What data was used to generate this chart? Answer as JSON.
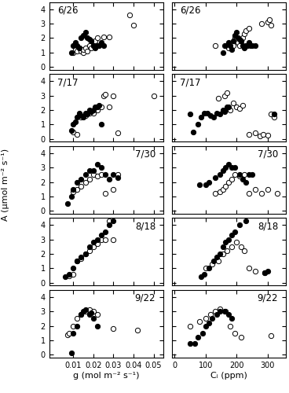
{
  "dates": [
    "6/26",
    "7/17",
    "7/30",
    "8/18",
    "9/22"
  ],
  "g_open": {
    "6/26": [
      0.01,
      0.011,
      0.012,
      0.013,
      0.014,
      0.015,
      0.015,
      0.016,
      0.017,
      0.018,
      0.019,
      0.02,
      0.021,
      0.022,
      0.025,
      0.028,
      0.038,
      0.04
    ],
    "7/17": [
      0.01,
      0.012,
      0.014,
      0.016,
      0.018,
      0.02,
      0.022,
      0.024,
      0.025,
      0.026,
      0.028,
      0.03,
      0.032,
      0.05
    ],
    "7/30": [
      0.01,
      0.012,
      0.014,
      0.016,
      0.018,
      0.02,
      0.022,
      0.024,
      0.026,
      0.03,
      0.032
    ],
    "8/18": [
      0.008,
      0.01,
      0.012,
      0.014,
      0.016,
      0.018,
      0.02,
      0.022,
      0.024,
      0.026,
      0.028,
      0.03
    ],
    "9/22": [
      0.007,
      0.008,
      0.01,
      0.012,
      0.014,
      0.016,
      0.018,
      0.02,
      0.022,
      0.03,
      0.042
    ]
  },
  "A_open_g": {
    "6/26": [
      1.0,
      1.2,
      1.1,
      1.3,
      1.1,
      1.0,
      1.2,
      1.3,
      1.1,
      1.5,
      1.3,
      1.5,
      1.8,
      2.0,
      2.1,
      2.1,
      3.6,
      2.9
    ],
    "7/17": [
      0.5,
      0.3,
      1.5,
      1.6,
      1.8,
      1.8,
      2.0,
      2.2,
      3.0,
      3.1,
      2.2,
      3.0,
      0.4,
      3.0
    ],
    "7/30": [
      1.3,
      1.5,
      1.7,
      2.0,
      2.2,
      2.5,
      2.4,
      2.5,
      1.2,
      1.5,
      2.5
    ],
    "8/18": [
      0.5,
      0.6,
      1.5,
      1.7,
      2.0,
      2.2,
      2.5,
      2.7,
      3.0,
      3.0,
      4.3,
      3.0
    ],
    "9/22": [
      1.4,
      1.5,
      2.0,
      2.5,
      2.8,
      3.0,
      3.1,
      3.0,
      2.8,
      1.8,
      1.7
    ]
  },
  "g_solid": {
    "6/26": [
      0.009,
      0.01,
      0.011,
      0.012,
      0.013,
      0.014,
      0.015,
      0.016,
      0.017,
      0.018,
      0.019,
      0.02,
      0.021,
      0.022,
      0.023,
      0.024,
      0.025
    ],
    "7/17": [
      0.009,
      0.01,
      0.011,
      0.012,
      0.013,
      0.014,
      0.015,
      0.016,
      0.017,
      0.018,
      0.019,
      0.02,
      0.021,
      0.022,
      0.023,
      0.024
    ],
    "7/30": [
      0.007,
      0.009,
      0.01,
      0.012,
      0.014,
      0.016,
      0.018,
      0.02,
      0.022,
      0.024,
      0.026,
      0.028,
      0.03,
      0.032
    ],
    "8/18": [
      0.006,
      0.008,
      0.01,
      0.012,
      0.014,
      0.016,
      0.018,
      0.02,
      0.022,
      0.024,
      0.026,
      0.028,
      0.03
    ],
    "9/22": [
      0.009,
      0.01,
      0.012,
      0.014,
      0.015,
      0.016,
      0.018,
      0.019,
      0.02,
      0.022
    ]
  },
  "A_solid_g": {
    "6/26": [
      1.0,
      1.5,
      1.7,
      1.5,
      1.3,
      2.0,
      2.2,
      2.4,
      2.0,
      1.9,
      1.8,
      1.5,
      1.3,
      1.5,
      1.5,
      1.7,
      1.5
    ],
    "7/17": [
      0.6,
      1.0,
      1.2,
      1.5,
      1.8,
      1.6,
      1.5,
      1.8,
      1.7,
      2.0,
      1.9,
      2.0,
      2.2,
      2.2,
      2.3,
      1.0
    ],
    "7/30": [
      0.5,
      1.0,
      1.5,
      2.0,
      2.2,
      2.5,
      2.8,
      2.8,
      3.2,
      3.0,
      2.5,
      2.2,
      2.5,
      2.3
    ],
    "8/18": [
      0.4,
      0.6,
      1.0,
      1.5,
      1.8,
      2.0,
      2.5,
      2.8,
      3.0,
      3.3,
      3.5,
      4.0,
      4.3
    ],
    "9/22": [
      0.1,
      1.5,
      2.0,
      2.8,
      3.0,
      3.1,
      2.8,
      2.9,
      2.5,
      2.0
    ]
  },
  "ci_open": {
    "6/26": [
      130,
      160,
      175,
      185,
      190,
      195,
      200,
      205,
      210,
      215,
      220,
      225,
      230,
      240,
      280,
      300,
      305,
      310
    ],
    "7/17": [
      140,
      160,
      170,
      180,
      190,
      200,
      210,
      220,
      240,
      260,
      275,
      285,
      300,
      310,
      320
    ],
    "7/30": [
      130,
      145,
      155,
      165,
      175,
      185,
      195,
      210,
      225,
      240,
      260,
      280,
      300,
      330
    ],
    "8/18": [
      100,
      120,
      140,
      155,
      170,
      185,
      200,
      215,
      225,
      240,
      260,
      290
    ],
    "9/22": [
      50,
      80,
      100,
      115,
      130,
      145,
      165,
      180,
      195,
      215,
      310
    ]
  },
  "A_open_ci": {
    "6/26": [
      1.5,
      1.5,
      1.3,
      1.4,
      1.5,
      2.0,
      1.8,
      1.7,
      1.5,
      1.8,
      2.0,
      2.3,
      2.5,
      2.7,
      3.0,
      3.1,
      3.3,
      2.9
    ],
    "7/17": [
      2.8,
      3.0,
      3.2,
      2.0,
      2.5,
      2.2,
      2.1,
      2.3,
      0.3,
      0.4,
      0.2,
      0.3,
      0.25,
      1.7,
      1.5
    ],
    "7/30": [
      1.2,
      1.3,
      1.5,
      1.7,
      2.0,
      2.2,
      2.5,
      2.4,
      2.5,
      1.2,
      1.5,
      1.2,
      1.5,
      1.2
    ],
    "8/18": [
      1.0,
      1.3,
      1.5,
      2.0,
      2.2,
      2.5,
      2.8,
      2.5,
      2.2,
      1.0,
      0.8,
      0.7
    ],
    "9/22": [
      2.0,
      2.3,
      2.5,
      2.8,
      3.0,
      3.2,
      3.0,
      2.0,
      1.5,
      1.2,
      1.3
    ]
  },
  "ci_solid": {
    "6/26": [
      155,
      165,
      175,
      180,
      185,
      190,
      195,
      200,
      205,
      210,
      215,
      220,
      225,
      230,
      235,
      240,
      245,
      250,
      260
    ],
    "7/17": [
      50,
      60,
      75,
      85,
      95,
      105,
      115,
      125,
      135,
      145,
      155,
      160,
      165,
      170,
      175,
      320
    ],
    "7/30": [
      80,
      100,
      110,
      130,
      145,
      155,
      165,
      175,
      185,
      195,
      210,
      220,
      230,
      240,
      250
    ],
    "8/18": [
      85,
      95,
      110,
      125,
      135,
      145,
      155,
      165,
      175,
      185,
      195,
      210,
      230,
      290,
      300
    ],
    "9/22": [
      50,
      65,
      75,
      90,
      100,
      110,
      120,
      135,
      145,
      160,
      175,
      185
    ]
  },
  "A_solid_ci": {
    "6/26": [
      1.0,
      1.5,
      1.7,
      1.5,
      1.2,
      1.8,
      2.2,
      2.4,
      2.0,
      1.9,
      1.8,
      1.5,
      1.3,
      1.5,
      1.5,
      1.7,
      1.5,
      1.5,
      1.5
    ],
    "7/17": [
      1.7,
      0.5,
      1.0,
      1.5,
      1.8,
      1.8,
      1.6,
      1.5,
      1.8,
      1.7,
      2.0,
      1.9,
      2.0,
      2.2,
      2.2,
      1.7
    ],
    "7/30": [
      1.8,
      1.8,
      2.0,
      2.3,
      2.5,
      2.8,
      3.0,
      3.2,
      3.0,
      3.0,
      2.5,
      2.2,
      2.0,
      2.5,
      2.5
    ],
    "8/18": [
      0.4,
      0.6,
      1.0,
      1.5,
      1.8,
      2.0,
      2.5,
      2.8,
      3.0,
      3.3,
      3.5,
      4.0,
      4.3,
      0.7,
      0.8
    ],
    "9/22": [
      0.8,
      0.8,
      1.2,
      1.5,
      2.0,
      2.2,
      2.5,
      2.8,
      3.0,
      3.0,
      2.8,
      2.5
    ]
  },
  "xlim_g": [
    -0.002,
    0.055
  ],
  "xlim_ci": [
    -10,
    360
  ],
  "ylim": [
    -0.2,
    4.5
  ],
  "yticks": [
    0,
    1,
    2,
    3,
    4
  ],
  "xticks_g": [
    0.01,
    0.02,
    0.03,
    0.04,
    0.05
  ],
  "xticks_ci": [
    0,
    100,
    200,
    300
  ],
  "ylabel": "A (μmol m⁻² s⁻¹)",
  "xlabel_g": "g (mol m⁻² s⁻¹)",
  "xlabel_ci": "Cᵢ (ppm)",
  "marker_size": 4.5,
  "label_positions": {
    "6/26": "upper left",
    "7/17": "upper left",
    "7/30": "upper right",
    "8/18": "upper right",
    "9/22": "upper right"
  }
}
